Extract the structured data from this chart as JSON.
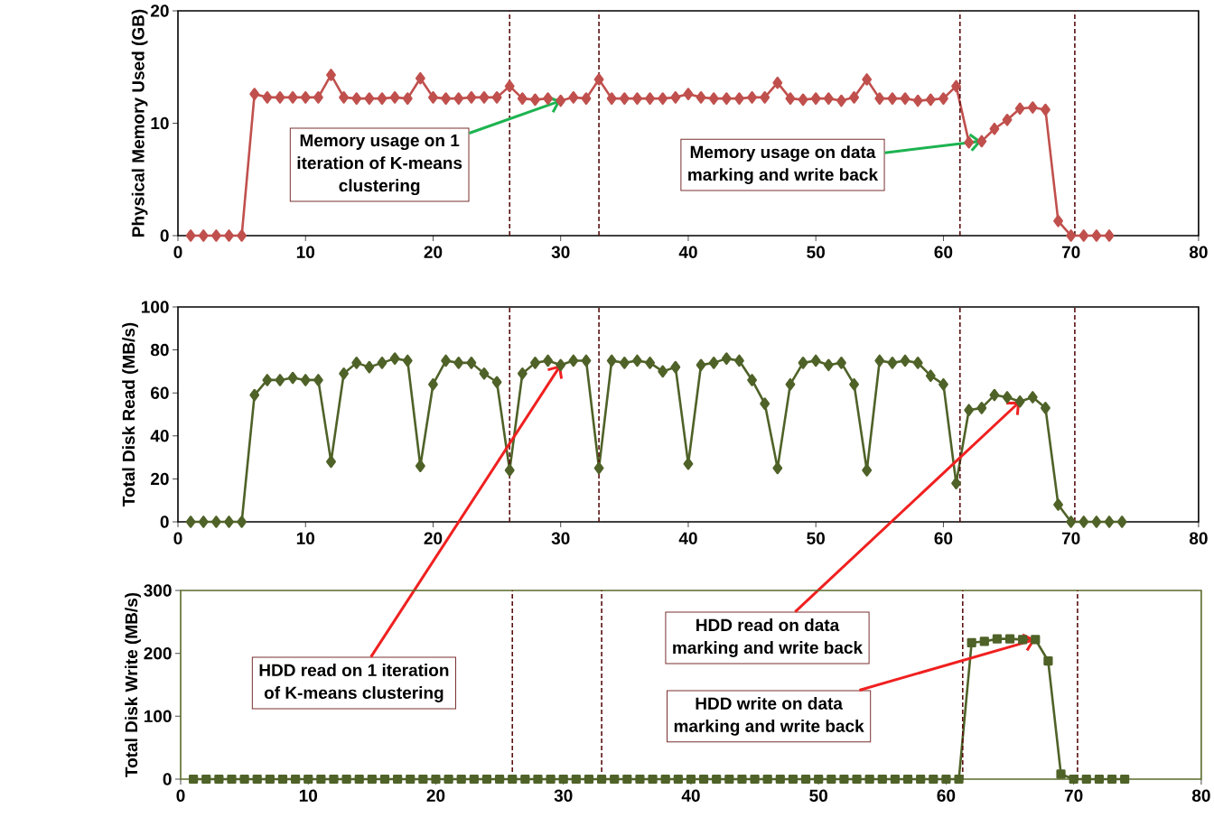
{
  "chart_data": [
    {
      "type": "line",
      "ylabel": "Physical Memory Used (GB)",
      "xlim": [
        0,
        80
      ],
      "xticks": [
        0,
        10,
        20,
        30,
        40,
        50,
        60,
        70,
        80
      ],
      "ylim": [
        0,
        20
      ],
      "yticks": [
        0,
        10,
        20
      ],
      "marker": "diamond",
      "line_style": "solid",
      "series": [
        {
          "color": "#c0504d",
          "x": [
            1,
            2,
            3,
            4,
            5,
            6,
            7,
            8,
            9,
            10,
            11,
            12,
            13,
            14,
            15,
            16,
            17,
            18,
            19,
            20,
            21,
            22,
            23,
            24,
            25,
            26,
            27,
            28,
            29,
            30,
            31,
            32,
            33,
            34,
            35,
            36,
            37,
            38,
            39,
            40,
            41,
            42,
            43,
            44,
            45,
            46,
            47,
            48,
            49,
            50,
            51,
            52,
            53,
            54,
            55,
            56,
            57,
            58,
            59,
            60,
            61,
            62,
            63,
            64,
            65,
            66,
            67,
            68,
            69,
            70,
            71,
            72,
            73
          ],
          "values": [
            0,
            0,
            0,
            0,
            0,
            12.6,
            12.3,
            12.3,
            12.3,
            12.3,
            12.3,
            14.3,
            12.3,
            12.2,
            12.2,
            12.2,
            12.3,
            12.2,
            14.0,
            12.3,
            12.2,
            12.2,
            12.3,
            12.3,
            12.3,
            13.3,
            12.2,
            12.1,
            12.2,
            12.0,
            12.3,
            12.2,
            13.9,
            12.2,
            12.2,
            12.2,
            12.2,
            12.2,
            12.3,
            12.6,
            12.3,
            12.2,
            12.2,
            12.2,
            12.3,
            12.3,
            13.6,
            12.2,
            12.1,
            12.2,
            12.2,
            12.0,
            12.3,
            13.9,
            12.2,
            12.2,
            12.2,
            12.0,
            12.1,
            12.2,
            13.3,
            8.3,
            8.4,
            9.5,
            10.3,
            11.3,
            11.4,
            11.2,
            1.3,
            0,
            0,
            0,
            0
          ]
        }
      ],
      "ref_lines": [
        {
          "axis": "x",
          "value": 26,
          "color": "#5a1010",
          "line_style": "dashed"
        },
        {
          "axis": "x",
          "value": 33,
          "color": "#5a1010",
          "line_style": "dashed"
        },
        {
          "axis": "x",
          "value": 61.3,
          "color": "#5a1010",
          "line_style": "dashed"
        },
        {
          "axis": "x",
          "value": 70.3,
          "color": "#5a1010",
          "line_style": "dashed"
        }
      ],
      "annotations": [
        {
          "text": "Memory usage on 1 iteration of K-means clustering",
          "x": 30,
          "y": 12.0
        },
        {
          "text": "Memory usage on data marking and write back",
          "x": 63,
          "y": 8.4
        }
      ]
    },
    {
      "type": "line",
      "ylabel": "Total Disk Read (MB/s)",
      "xlim": [
        0,
        80
      ],
      "xticks": [
        0,
        10,
        20,
        30,
        40,
        50,
        60,
        70,
        80
      ],
      "ylim": [
        0,
        100
      ],
      "yticks": [
        0,
        20,
        40,
        60,
        80,
        100
      ],
      "marker": "diamond",
      "line_style": "solid",
      "series": [
        {
          "color": "#4f6228",
          "x": [
            1,
            2,
            3,
            4,
            5,
            6,
            7,
            8,
            9,
            10,
            11,
            12,
            13,
            14,
            15,
            16,
            17,
            18,
            19,
            20,
            21,
            22,
            23,
            24,
            25,
            26,
            27,
            28,
            29,
            30,
            31,
            32,
            33,
            34,
            35,
            36,
            37,
            38,
            39,
            40,
            41,
            42,
            43,
            44,
            45,
            46,
            47,
            48,
            49,
            50,
            51,
            52,
            53,
            54,
            55,
            56,
            57,
            58,
            59,
            60,
            61,
            62,
            63,
            64,
            65,
            66,
            67,
            68,
            69,
            70,
            71,
            72,
            73,
            74
          ],
          "values": [
            0,
            0,
            0,
            0,
            0,
            59,
            66,
            66,
            67,
            66,
            66,
            28,
            69,
            74,
            72,
            74,
            76,
            75,
            26,
            64,
            75,
            74,
            74,
            69,
            65,
            24,
            69,
            74,
            75,
            73,
            75,
            75,
            25,
            75,
            74,
            75,
            74,
            70,
            72,
            27,
            73,
            74,
            76,
            75,
            66,
            55,
            25,
            64,
            74,
            75,
            73,
            74,
            64,
            24,
            75,
            74,
            75,
            74,
            68,
            64,
            18,
            52,
            53,
            59,
            58,
            56,
            58,
            53,
            8,
            0,
            0,
            0,
            0,
            0
          ]
        }
      ],
      "ref_lines": [
        {
          "axis": "x",
          "value": 26,
          "color": "#5a1010",
          "line_style": "dashed"
        },
        {
          "axis": "x",
          "value": 33,
          "color": "#5a1010",
          "line_style": "dashed"
        },
        {
          "axis": "x",
          "value": 61.3,
          "color": "#5a1010",
          "line_style": "dashed"
        },
        {
          "axis": "x",
          "value": 70.3,
          "color": "#5a1010",
          "line_style": "dashed"
        }
      ],
      "annotations": [
        {
          "text": "HDD read on 1 iteration of K-means clustering",
          "x": 30,
          "y": 73
        },
        {
          "text": "HDD read on data marking and write back",
          "x": 66,
          "y": 56
        }
      ]
    },
    {
      "type": "line",
      "ylabel": "Total Disk Write (MB/s)",
      "xlim": [
        0,
        80
      ],
      "xticks": [
        0,
        10,
        20,
        30,
        40,
        50,
        60,
        70,
        80
      ],
      "ylim": [
        0,
        300
      ],
      "yticks": [
        0,
        100,
        200,
        300
      ],
      "marker": "square",
      "line_style": "solid",
      "series": [
        {
          "color": "#4f6228",
          "x": [
            1,
            2,
            3,
            4,
            5,
            6,
            7,
            8,
            9,
            10,
            11,
            12,
            13,
            14,
            15,
            16,
            17,
            18,
            19,
            20,
            21,
            22,
            23,
            24,
            25,
            26,
            27,
            28,
            29,
            30,
            31,
            32,
            33,
            34,
            35,
            36,
            37,
            38,
            39,
            40,
            41,
            42,
            43,
            44,
            45,
            46,
            47,
            48,
            49,
            50,
            51,
            52,
            53,
            54,
            55,
            56,
            57,
            58,
            59,
            60,
            61,
            62,
            63,
            64,
            65,
            66,
            67,
            68,
            69,
            70,
            71,
            72,
            73,
            74
          ],
          "values": [
            0,
            0,
            0,
            0,
            0,
            0,
            0,
            0,
            0,
            0,
            0,
            0,
            0,
            0,
            0,
            0,
            0,
            0,
            0,
            0,
            0,
            0,
            0,
            0,
            0,
            0,
            0,
            0,
            0,
            0,
            0,
            0,
            0,
            0,
            0,
            0,
            0,
            0,
            0,
            0,
            0,
            0,
            0,
            0,
            0,
            0,
            0,
            0,
            0,
            0,
            0,
            0,
            0,
            0,
            0,
            0,
            0,
            0,
            0,
            0,
            0,
            217,
            219,
            223,
            223,
            222,
            222,
            188,
            8,
            0,
            0,
            0,
            0,
            0
          ]
        }
      ],
      "ref_lines": [
        {
          "axis": "x",
          "value": 26,
          "color": "#5a1010",
          "line_style": "dashed"
        },
        {
          "axis": "x",
          "value": 33,
          "color": "#5a1010",
          "line_style": "dashed"
        },
        {
          "axis": "x",
          "value": 61.3,
          "color": "#5a1010",
          "line_style": "dashed"
        },
        {
          "axis": "x",
          "value": 70.3,
          "color": "#5a1010",
          "line_style": "dashed"
        }
      ],
      "annotations": [
        {
          "text": "HDD write on data marking and write back",
          "x": 67,
          "y": 222
        }
      ]
    }
  ]
}
